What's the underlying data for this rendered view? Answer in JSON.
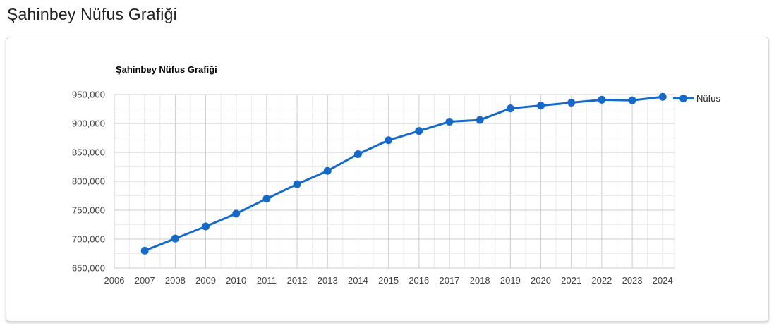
{
  "page": {
    "title": "Şahinbey Nüfus Grafiği"
  },
  "chart_data": {
    "type": "line",
    "title": "Şahinbey Nüfus Grafiği",
    "x": [
      2007,
      2008,
      2009,
      2010,
      2011,
      2012,
      2013,
      2014,
      2015,
      2016,
      2017,
      2018,
      2019,
      2020,
      2021,
      2022,
      2023,
      2024
    ],
    "series": [
      {
        "name": "Nüfus",
        "values": [
          680000,
          701000,
          722000,
          744000,
          770000,
          795000,
          818000,
          847000,
          871000,
          887000,
          903000,
          906000,
          926000,
          931000,
          936000,
          941000,
          940000,
          946000
        ]
      }
    ],
    "x_ticks": [
      2006,
      2007,
      2008,
      2009,
      2010,
      2011,
      2012,
      2013,
      2014,
      2015,
      2016,
      2017,
      2018,
      2019,
      2020,
      2021,
      2022,
      2023,
      2024
    ],
    "y_ticks": [
      650000,
      700000,
      750000,
      800000,
      850000,
      900000,
      950000
    ],
    "ylim": [
      650000,
      950000
    ],
    "xlim_start": 2006,
    "y_major_step": 50000,
    "y_minor_step": 25000,
    "x_minor_step": 0.5,
    "grid": true,
    "legend_position": "right",
    "colors": {
      "series": "#1569C8",
      "grid_major": "#cccccc",
      "grid_minor": "#ebebeb",
      "axis_text": "#444444",
      "title_text": "#000000"
    }
  }
}
